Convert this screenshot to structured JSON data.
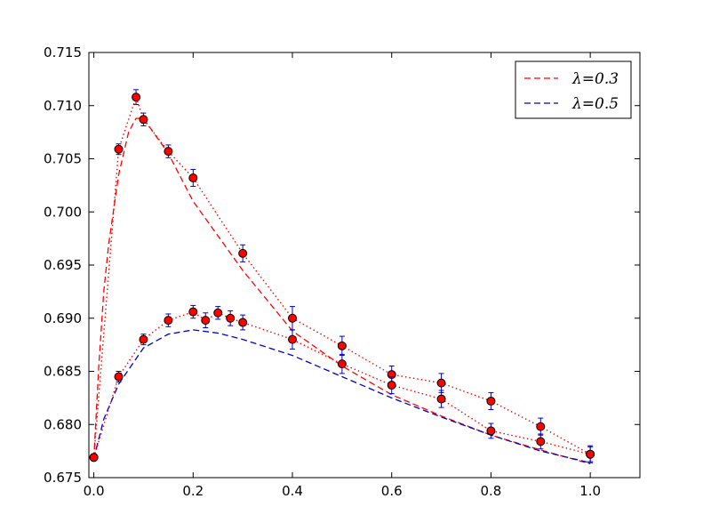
{
  "chart_data": {
    "type": "line",
    "title": "",
    "xlabel": "",
    "ylabel": "",
    "xlim": [
      -0.01,
      1.1
    ],
    "ylim": [
      0.675,
      0.715
    ],
    "x_ticks": [
      {
        "value": 0.0,
        "label": "0.0"
      },
      {
        "value": 0.2,
        "label": "0.2"
      },
      {
        "value": 0.4,
        "label": "0.4"
      },
      {
        "value": 0.6,
        "label": "0.6"
      },
      {
        "value": 0.8,
        "label": "0.8"
      },
      {
        "value": 1.0,
        "label": "1.0"
      }
    ],
    "y_ticks": [
      {
        "value": 0.675,
        "label": "0.675"
      },
      {
        "value": 0.68,
        "label": "0.680"
      },
      {
        "value": 0.685,
        "label": "0.685"
      },
      {
        "value": 0.69,
        "label": "0.690"
      },
      {
        "value": 0.695,
        "label": "0.695"
      },
      {
        "value": 0.7,
        "label": "0.700"
      },
      {
        "value": 0.705,
        "label": "0.705"
      },
      {
        "value": 0.71,
        "label": "0.710"
      },
      {
        "value": 0.715,
        "label": "0.715"
      }
    ],
    "grid": false,
    "legend_position": "top-right",
    "series": [
      {
        "name": "λ=0.3",
        "style": "dashed",
        "color": "#ff0000",
        "x": [
          0.0,
          0.01,
          0.02,
          0.03,
          0.05,
          0.07,
          0.085,
          0.1,
          0.15,
          0.2,
          0.3,
          0.4,
          0.5,
          0.6,
          0.7,
          0.8,
          0.9,
          1.0
        ],
        "y": [
          0.6768,
          0.6855,
          0.6925,
          0.697,
          0.7035,
          0.7075,
          0.7088,
          0.7088,
          0.7055,
          0.701,
          0.6945,
          0.6888,
          0.6855,
          0.6828,
          0.6808,
          0.679,
          0.6776,
          0.6763
        ]
      },
      {
        "name": "λ=0.5",
        "style": "dashed",
        "color": "#0000cc",
        "x": [
          0.0,
          0.02,
          0.05,
          0.1,
          0.15,
          0.2,
          0.25,
          0.3,
          0.4,
          0.5,
          0.6,
          0.7,
          0.8,
          0.9,
          1.0
        ],
        "y": [
          0.6768,
          0.6805,
          0.6838,
          0.6872,
          0.6885,
          0.6889,
          0.6886,
          0.688,
          0.6865,
          0.6845,
          0.6825,
          0.6807,
          0.679,
          0.6775,
          0.6764
        ]
      }
    ],
    "measurements": [
      {
        "color": "#ff0000",
        "marker_color": "#ff0000",
        "errorbar_color": "#0000cc",
        "style": "dotted",
        "points": [
          {
            "x": 0.0,
            "y": 0.6769,
            "err": 0.0003
          },
          {
            "x": 0.05,
            "y": 0.7059,
            "err": 0.0005
          },
          {
            "x": 0.085,
            "y": 0.7108,
            "err": 0.0007
          },
          {
            "x": 0.1,
            "y": 0.7087,
            "err": 0.0006
          },
          {
            "x": 0.15,
            "y": 0.7057,
            "err": 0.0006
          },
          {
            "x": 0.2,
            "y": 0.7032,
            "err": 0.0008
          },
          {
            "x": 0.3,
            "y": 0.6961,
            "err": 0.0008
          },
          {
            "x": 0.4,
            "y": 0.69,
            "err": 0.0011
          },
          {
            "x": 0.5,
            "y": 0.6874,
            "err": 0.0009
          },
          {
            "x": 0.6,
            "y": 0.6847,
            "err": 0.0008
          },
          {
            "x": 0.7,
            "y": 0.6839,
            "err": 0.0009
          },
          {
            "x": 0.8,
            "y": 0.6822,
            "err": 0.0008
          },
          {
            "x": 0.9,
            "y": 0.6798,
            "err": 0.0008
          },
          {
            "x": 1.0,
            "y": 0.6772,
            "err": 0.0008
          }
        ]
      },
      {
        "color": "#ff0000",
        "marker_color": "#ff0000",
        "errorbar_color": "#0000cc",
        "style": "dotted",
        "points": [
          {
            "x": 0.0,
            "y": 0.6769,
            "err": 0.0003
          },
          {
            "x": 0.05,
            "y": 0.6845,
            "err": 0.0005
          },
          {
            "x": 0.1,
            "y": 0.688,
            "err": 0.0005
          },
          {
            "x": 0.15,
            "y": 0.6898,
            "err": 0.0006
          },
          {
            "x": 0.2,
            "y": 0.6906,
            "err": 0.0006
          },
          {
            "x": 0.225,
            "y": 0.6898,
            "err": 0.0007
          },
          {
            "x": 0.25,
            "y": 0.6905,
            "err": 0.0006
          },
          {
            "x": 0.275,
            "y": 0.69,
            "err": 0.0007
          },
          {
            "x": 0.3,
            "y": 0.6896,
            "err": 0.0007
          },
          {
            "x": 0.4,
            "y": 0.688,
            "err": 0.0009
          },
          {
            "x": 0.5,
            "y": 0.6857,
            "err": 0.0009
          },
          {
            "x": 0.6,
            "y": 0.6837,
            "err": 0.0008
          },
          {
            "x": 0.7,
            "y": 0.6824,
            "err": 0.0008
          },
          {
            "x": 0.8,
            "y": 0.6794,
            "err": 0.0007
          },
          {
            "x": 0.9,
            "y": 0.6784,
            "err": 0.0007
          },
          {
            "x": 1.0,
            "y": 0.6772,
            "err": 0.0007
          }
        ]
      }
    ]
  }
}
